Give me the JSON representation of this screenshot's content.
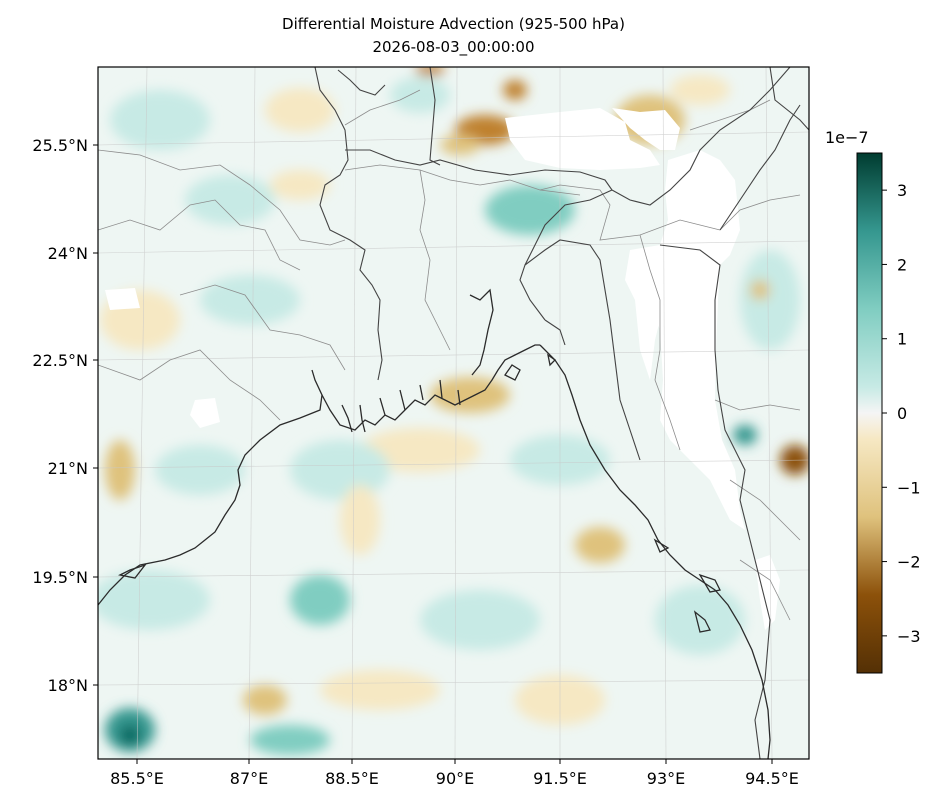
{
  "title": "Differential Moisture Advection (925-500 hPa)",
  "subtitle": "2026-08-03_00:00:00",
  "map": {
    "projection": "lat-lon",
    "lon_range": [
      84.9,
      95.3
    ],
    "lat_range": [
      16.8,
      26.6
    ],
    "lon_ticks": [
      "85.5°E",
      "87°E",
      "88.5°E",
      "90°E",
      "91.5°E",
      "93°E",
      "94.5°E"
    ],
    "lat_ticks": [
      "25.5°N",
      "24°N",
      "22.5°N",
      "21°N",
      "19.5°N",
      "18°N"
    ],
    "gridlines": true,
    "features": [
      "coastline",
      "country-borders",
      "state-borders"
    ],
    "masked_regions": [
      "high terrain (white, no data)"
    ]
  },
  "colorbar": {
    "colormap": "BrBG",
    "exponent_label": "1e−7",
    "range": [
      -3.5,
      3.5
    ],
    "ticks": [
      "3",
      "2",
      "1",
      "0",
      "−1",
      "−2",
      "−3"
    ],
    "colors": {
      "neg_max": "#543005",
      "neg_mid": "#bf812d",
      "neg_low": "#f6e8c3",
      "zero": "#f5f5f5",
      "pos_low": "#c7eae5",
      "pos_mid": "#35978f",
      "pos_max": "#003c30"
    }
  }
}
